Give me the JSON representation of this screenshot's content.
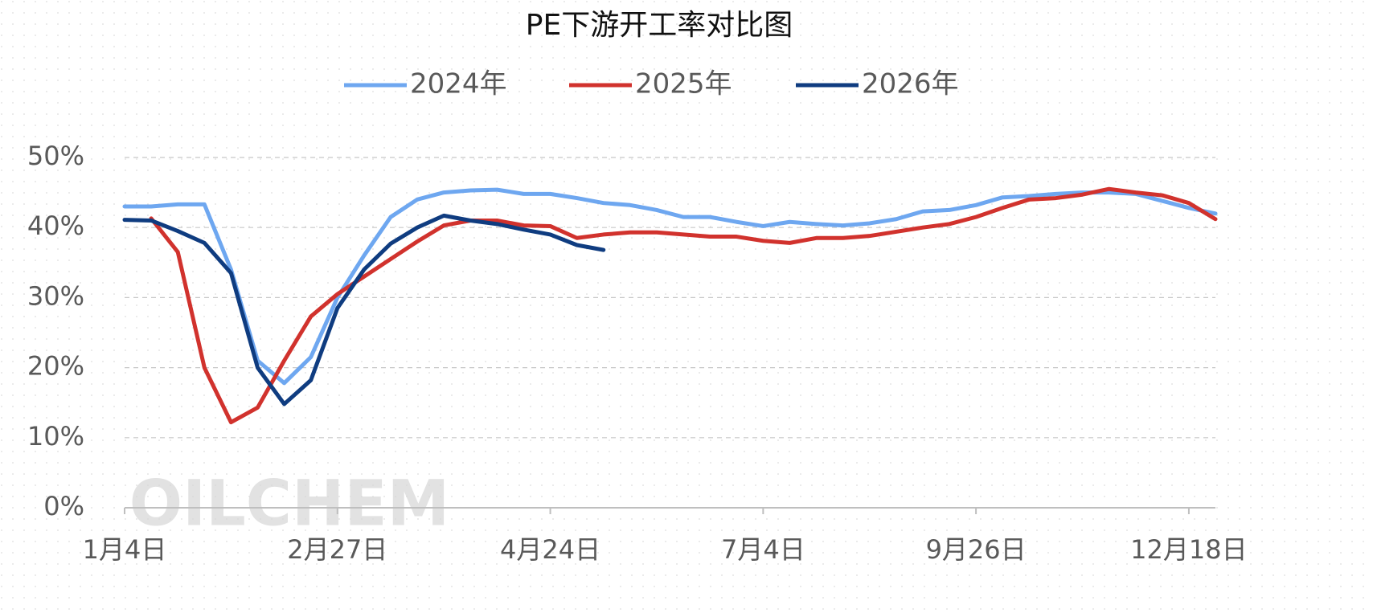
{
  "chart_data": {
    "type": "line",
    "title": "PE下游开工率对比图",
    "watermark": "OILCHEM",
    "categories": [
      "1月4日",
      null,
      null,
      null,
      null,
      null,
      null,
      null,
      "2月27日",
      null,
      null,
      null,
      null,
      null,
      null,
      null,
      "4月24日",
      null,
      null,
      null,
      null,
      null,
      null,
      null,
      "7月4日",
      null,
      null,
      null,
      null,
      null,
      null,
      null,
      "9月26日",
      null,
      null,
      null,
      null,
      null,
      null,
      null,
      "12月18日",
      null
    ],
    "series": [
      {
        "name": "2024年",
        "color": "#6ea7f0",
        "values": [
          43.0,
          43.0,
          43.3,
          43.3,
          34,
          21,
          17.8,
          21.5,
          30,
          36,
          41.5,
          44,
          45,
          45.3,
          45.4,
          44.8,
          44.8,
          44.2,
          43.5,
          43.2,
          42.5,
          41.5,
          41.5,
          40.8,
          40.2,
          40.8,
          40.5,
          40.3,
          40.6,
          41.2,
          42.3,
          42.5,
          43.2,
          44.3,
          44.5,
          44.8,
          45.0,
          45.0,
          44.8,
          43.8,
          42.8,
          42.0
        ]
      },
      {
        "name": "2025年",
        "color": "#d1322d",
        "values": [
          null,
          41.3,
          36.5,
          20,
          12.2,
          14.3,
          21,
          27.3,
          30.5,
          33,
          35.5,
          38,
          40.3,
          41,
          41,
          40.3,
          40.2,
          38.5,
          39,
          39.3,
          39.3,
          39,
          38.7,
          38.7,
          38.1,
          37.8,
          38.5,
          38.5,
          38.8,
          39.4,
          40,
          40.5,
          41.5,
          42.8,
          44,
          44.2,
          44.7,
          45.5,
          45,
          44.6,
          43.5,
          41.2
        ]
      },
      {
        "name": "2026年",
        "color": "#0f3c80",
        "values": [
          41.1,
          41,
          39.5,
          37.8,
          33.5,
          20,
          14.8,
          18.2,
          28.5,
          34,
          37.7,
          40,
          41.7,
          41,
          40.5,
          39.7,
          39,
          37.5,
          36.8,
          null,
          null,
          null,
          null,
          null,
          null,
          null,
          null,
          null,
          null,
          null,
          null,
          null,
          null,
          null,
          null,
          null,
          null,
          null,
          null,
          null,
          null,
          null
        ]
      }
    ],
    "ylim": [
      0,
      50
    ],
    "yticks": [
      {
        "value": 0,
        "label": "0%"
      },
      {
        "value": 10,
        "label": "10%"
      },
      {
        "value": 20,
        "label": "20%"
      },
      {
        "value": 30,
        "label": "30%"
      },
      {
        "value": 40,
        "label": "40%"
      },
      {
        "value": 50,
        "label": "50%"
      }
    ],
    "grid": true
  }
}
